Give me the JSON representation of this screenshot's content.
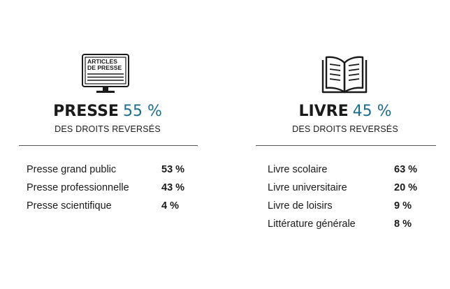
{
  "presse": {
    "icon": "monitor-articles-de-presse-icon",
    "icon_line1": "ARTICLES",
    "icon_line2": "DE PRESSE",
    "name": "PRESSE",
    "percent": "55 %",
    "subtitle": "DES DROITS REVERSÉS",
    "items": [
      {
        "label": "Presse grand public",
        "value": "53 %"
      },
      {
        "label": "Presse professionnelle",
        "value": "43 %"
      },
      {
        "label": "Presse scientifique",
        "value": "4 %"
      }
    ]
  },
  "livre": {
    "icon": "open-book-icon",
    "name": "LIVRE",
    "percent": "45 %",
    "subtitle": "DES DROITS REVERSÉS",
    "items": [
      {
        "label": "Livre scolaire",
        "value": "63 %"
      },
      {
        "label": "Livre universitaire",
        "value": "20 %"
      },
      {
        "label": "Livre de loisirs",
        "value": "9 %"
      },
      {
        "label": "Littérature générale",
        "value": "8 %"
      }
    ]
  },
  "colors": {
    "accent": "#1b6e8e",
    "text": "#1a1a1a",
    "rule": "#555555",
    "background": "#ffffff"
  }
}
